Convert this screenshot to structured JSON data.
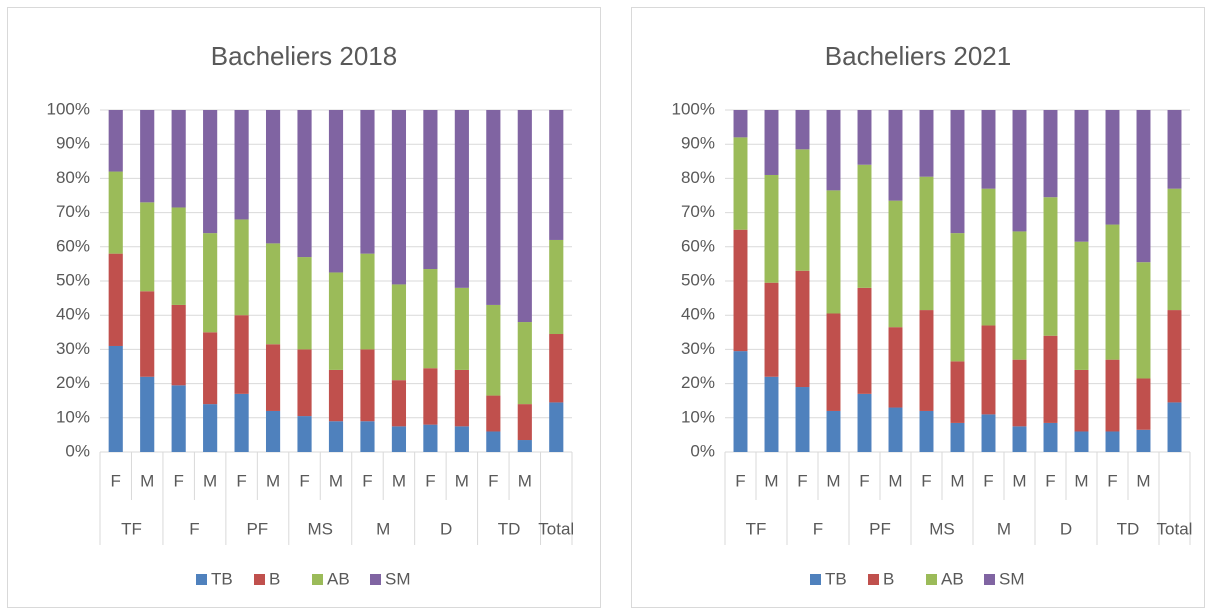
{
  "chart_data": [
    {
      "type": "bar",
      "stacked": true,
      "title": "Bacheliers 2018",
      "groups": [
        {
          "name": "TF",
          "categories": [
            "F",
            "M"
          ]
        },
        {
          "name": "F",
          "categories": [
            "F",
            "M"
          ]
        },
        {
          "name": "PF",
          "categories": [
            "F",
            "M"
          ]
        },
        {
          "name": "MS",
          "categories": [
            "F",
            "M"
          ]
        },
        {
          "name": "M",
          "categories": [
            "F",
            "M"
          ]
        },
        {
          "name": "D",
          "categories": [
            "F",
            "M"
          ]
        },
        {
          "name": "TD",
          "categories": [
            "F",
            "M"
          ]
        },
        {
          "name": "Total",
          "categories": [
            null
          ]
        }
      ],
      "series": [
        {
          "name": "TB",
          "color": "#4f81bd",
          "values": [
            31,
            22,
            19.5,
            14,
            17,
            12,
            10.5,
            9,
            9,
            7.5,
            8,
            7.5,
            6,
            3.5,
            14.5
          ]
        },
        {
          "name": "B",
          "color": "#c0504d",
          "values": [
            27,
            25,
            23.5,
            21,
            23,
            19.5,
            19.5,
            15,
            21,
            13.5,
            16.5,
            16.5,
            10.5,
            10.5,
            20
          ]
        },
        {
          "name": "AB",
          "color": "#9bbb59",
          "values": [
            24,
            26,
            28.5,
            29,
            28,
            29.5,
            27,
            28.5,
            28,
            28,
            29,
            24,
            26.5,
            24,
            27.5
          ]
        },
        {
          "name": "SM",
          "color": "#8064a2",
          "values": [
            18,
            27,
            28.5,
            36,
            32,
            39,
            43,
            47.5,
            42,
            51,
            46.5,
            52,
            57,
            62,
            38
          ]
        }
      ],
      "ylim": [
        0,
        100
      ],
      "yticks": [
        {
          "value": 0,
          "label": "0%"
        },
        {
          "value": 10,
          "label": "10%"
        },
        {
          "value": 20,
          "label": "20%"
        },
        {
          "value": 30,
          "label": "30%"
        },
        {
          "value": 40,
          "label": "40%"
        },
        {
          "value": 50,
          "label": "50%"
        },
        {
          "value": 60,
          "label": "60%"
        },
        {
          "value": 70,
          "label": "70%"
        },
        {
          "value": 80,
          "label": "80%"
        },
        {
          "value": 90,
          "label": "90%"
        },
        {
          "value": 100,
          "label": "100%"
        }
      ],
      "grid": true,
      "legend": "bottom"
    },
    {
      "type": "bar",
      "stacked": true,
      "title": "Bacheliers 2021",
      "groups": [
        {
          "name": "TF",
          "categories": [
            "F",
            "M"
          ]
        },
        {
          "name": "F",
          "categories": [
            "F",
            "M"
          ]
        },
        {
          "name": "PF",
          "categories": [
            "F",
            "M"
          ]
        },
        {
          "name": "MS",
          "categories": [
            "F",
            "M"
          ]
        },
        {
          "name": "M",
          "categories": [
            "F",
            "M"
          ]
        },
        {
          "name": "D",
          "categories": [
            "F",
            "M"
          ]
        },
        {
          "name": "TD",
          "categories": [
            "F",
            "M"
          ]
        },
        {
          "name": "Total",
          "categories": [
            null
          ]
        }
      ],
      "series": [
        {
          "name": "TB",
          "color": "#4f81bd",
          "values": [
            29.5,
            22,
            19,
            12,
            17,
            13,
            12,
            8.5,
            11,
            7.5,
            8.5,
            6,
            6,
            6.5,
            14.5
          ]
        },
        {
          "name": "B",
          "color": "#c0504d",
          "values": [
            35.5,
            27.5,
            34,
            28.5,
            31,
            23.5,
            29.5,
            18,
            26,
            19.5,
            25.5,
            18,
            21,
            15,
            27
          ]
        },
        {
          "name": "AB",
          "color": "#9bbb59",
          "values": [
            27,
            31.5,
            35.5,
            36,
            36,
            37,
            39,
            37.5,
            40,
            37.5,
            40.5,
            37.5,
            39.5,
            34,
            35.5
          ]
        },
        {
          "name": "SM",
          "color": "#8064a2",
          "values": [
            8,
            19,
            11.5,
            23.5,
            16,
            26.5,
            19.5,
            36,
            23,
            35.5,
            25.5,
            38.5,
            33.5,
            44.5,
            23
          ]
        }
      ],
      "ylim": [
        0,
        100
      ],
      "yticks": [
        {
          "value": 0,
          "label": "0%"
        },
        {
          "value": 10,
          "label": "10%"
        },
        {
          "value": 20,
          "label": "20%"
        },
        {
          "value": 30,
          "label": "30%"
        },
        {
          "value": 40,
          "label": "40%"
        },
        {
          "value": 50,
          "label": "50%"
        },
        {
          "value": 60,
          "label": "60%"
        },
        {
          "value": 70,
          "label": "70%"
        },
        {
          "value": 80,
          "label": "80%"
        },
        {
          "value": 90,
          "label": "90%"
        },
        {
          "value": 100,
          "label": "100%"
        }
      ],
      "grid": true,
      "legend": "bottom"
    }
  ]
}
